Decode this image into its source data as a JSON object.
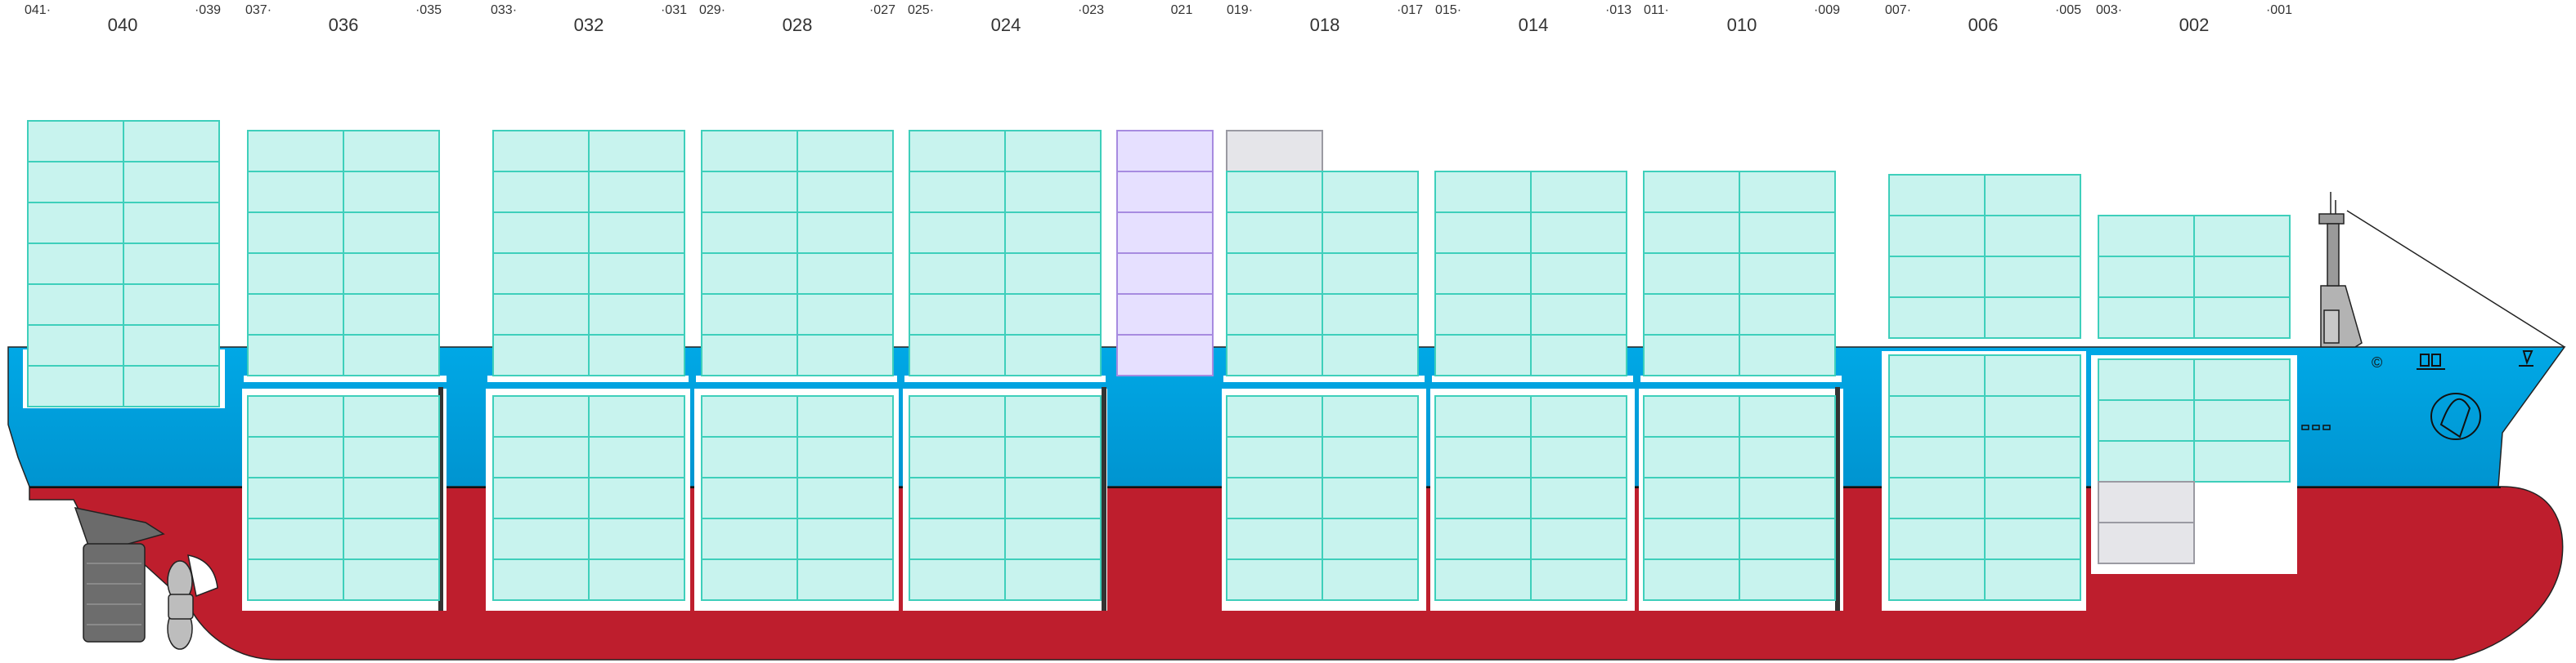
{
  "bays": [
    {
      "fwd": "041·",
      "center": "040",
      "aft": "·039"
    },
    {
      "fwd": "037·",
      "center": "036",
      "aft": "·035"
    },
    {
      "fwd": "033·",
      "center": "032",
      "aft": "·031"
    },
    {
      "fwd": "029·",
      "center": "028",
      "aft": "·027"
    },
    {
      "fwd": "025·",
      "center": "024",
      "aft": "·023"
    },
    {
      "fwd": "",
      "center": "021",
      "aft": ""
    },
    {
      "fwd": "019·",
      "center": "018",
      "aft": "·017"
    },
    {
      "fwd": "015·",
      "center": "014",
      "aft": "·013"
    },
    {
      "fwd": "011·",
      "center": "010",
      "aft": "·009"
    },
    {
      "fwd": "007·",
      "center": "006",
      "aft": "·005"
    },
    {
      "fwd": "003·",
      "center": "002",
      "aft": "·001"
    }
  ],
  "hull_marks": {
    "copyright": "©"
  },
  "colors": {
    "hull_top": "#00a5e3",
    "hull_bottom": "#be1e2d",
    "container_fill": "#c8f3ee",
    "container_stroke": "#3ecfbb",
    "reefer_fill": "#e6e0ff",
    "reefer_stroke": "#a78be0",
    "empty_fill": "#e5e5e9",
    "empty_stroke": "#9a9aa2"
  }
}
